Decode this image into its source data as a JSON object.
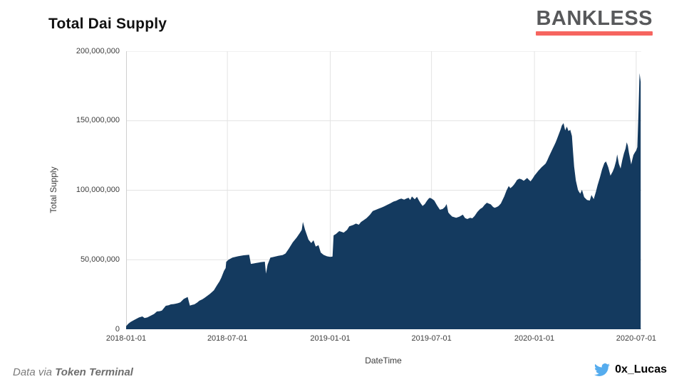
{
  "header": {
    "title": "Total Dai Supply",
    "logo_text": "BANKLESS"
  },
  "footer": {
    "credit_prefix": "Data via ",
    "credit_source": "Token Terminal",
    "twitter_handle": "0x_Lucas"
  },
  "icons": {
    "twitter": "twitter-bird-icon"
  },
  "colors": {
    "area_fill": "#143A5F",
    "logo_text": "#58595B",
    "logo_underline": "#F6655F",
    "twitter_blue": "#55ACEE",
    "gridline": "#E3E3E3",
    "axis_line": "#CFCFCF",
    "background": "#FFFFFF"
  },
  "chart_data": {
    "type": "area",
    "title": "Total Dai Supply",
    "xlabel": "DateTime",
    "ylabel": "Total Supply",
    "grid": true,
    "legend": "none",
    "ylim": [
      0,
      200000000
    ],
    "x_range_days": [
      0,
      921
    ],
    "x_epoch": "2018-01-01",
    "y_unit_of_points": "millions of DAI",
    "x_ticks": [
      {
        "label": "2018-01-01",
        "day": 0
      },
      {
        "label": "2018-07-01",
        "day": 181
      },
      {
        "label": "2019-01-01",
        "day": 365
      },
      {
        "label": "2019-07-01",
        "day": 546
      },
      {
        "label": "2020-01-01",
        "day": 730
      },
      {
        "label": "2020-07-01",
        "day": 912
      }
    ],
    "y_ticks": [
      {
        "label": "0",
        "value": 0
      },
      {
        "label": "50,000,000",
        "value": 50000000
      },
      {
        "label": "100,000,000",
        "value": 100000000
      },
      {
        "label": "150,000,000",
        "value": 150000000
      },
      {
        "label": "200,000,000",
        "value": 200000000
      }
    ],
    "series": [
      {
        "name": "Total Dai Supply",
        "points_day_millions": [
          [
            0,
            2.2
          ],
          [
            4,
            4.0
          ],
          [
            8,
            5.2
          ],
          [
            14,
            6.6
          ],
          [
            23,
            8.5
          ],
          [
            29,
            9.2
          ],
          [
            33,
            8.1
          ],
          [
            38,
            8.5
          ],
          [
            46,
            10.2
          ],
          [
            50,
            11.0
          ],
          [
            55,
            12.8
          ],
          [
            60,
            13.0
          ],
          [
            64,
            13.4
          ],
          [
            71,
            16.9
          ],
          [
            76,
            17.3
          ],
          [
            80,
            17.9
          ],
          [
            85,
            18.1
          ],
          [
            89,
            18.4
          ],
          [
            93,
            18.8
          ],
          [
            97,
            19.4
          ],
          [
            103,
            21.8
          ],
          [
            110,
            23.2
          ],
          [
            114,
            17.0
          ],
          [
            118,
            17.5
          ],
          [
            122,
            17.9
          ],
          [
            127,
            19.2
          ],
          [
            131,
            20.5
          ],
          [
            136,
            21.5
          ],
          [
            140,
            22.5
          ],
          [
            145,
            24.0
          ],
          [
            150,
            25.5
          ],
          [
            157,
            28.0
          ],
          [
            163,
            32.0
          ],
          [
            167,
            34.5
          ],
          [
            170,
            37.0
          ],
          [
            175,
            42.0
          ],
          [
            178,
            44.0
          ],
          [
            179,
            48.5
          ],
          [
            183,
            50.0
          ],
          [
            190,
            51.5
          ],
          [
            200,
            52.5
          ],
          [
            210,
            53.2
          ],
          [
            220,
            53.6
          ],
          [
            223,
            47.0
          ],
          [
            228,
            47.3
          ],
          [
            232,
            47.6
          ],
          [
            237,
            48.0
          ],
          [
            241,
            48.3
          ],
          [
            248,
            48.6
          ],
          [
            250,
            40.0
          ],
          [
            253,
            46.5
          ],
          [
            258,
            51.5
          ],
          [
            264,
            52.0
          ],
          [
            272,
            52.8
          ],
          [
            280,
            53.4
          ],
          [
            285,
            54.5
          ],
          [
            291,
            58.0
          ],
          [
            298,
            62.5
          ],
          [
            305,
            66.0
          ],
          [
            311,
            69.5
          ],
          [
            314,
            71.5
          ],
          [
            316,
            77.2
          ],
          [
            320,
            71.5
          ],
          [
            326,
            64.5
          ],
          [
            331,
            62.0
          ],
          [
            335,
            64.0
          ],
          [
            339,
            59.5
          ],
          [
            344,
            60.5
          ],
          [
            348,
            55.2
          ],
          [
            353,
            53.5
          ],
          [
            359,
            52.5
          ],
          [
            365,
            52.0
          ],
          [
            369,
            52.3
          ],
          [
            371,
            67.5
          ],
          [
            375,
            68.5
          ],
          [
            381,
            70.6
          ],
          [
            386,
            70.0
          ],
          [
            389,
            69.5
          ],
          [
            395,
            71.5
          ],
          [
            399,
            74.0
          ],
          [
            406,
            75.0
          ],
          [
            411,
            76.0
          ],
          [
            416,
            75.2
          ],
          [
            420,
            77.2
          ],
          [
            425,
            78.5
          ],
          [
            430,
            80.0
          ],
          [
            436,
            82.4
          ],
          [
            441,
            85.0
          ],
          [
            447,
            86.0
          ],
          [
            452,
            86.8
          ],
          [
            457,
            87.6
          ],
          [
            462,
            88.5
          ],
          [
            467,
            89.5
          ],
          [
            472,
            90.5
          ],
          [
            478,
            91.8
          ],
          [
            483,
            92.5
          ],
          [
            488,
            93.5
          ],
          [
            492,
            94.0
          ],
          [
            497,
            93.2
          ],
          [
            501,
            94.0
          ],
          [
            505,
            94.6
          ],
          [
            508,
            93.0
          ],
          [
            511,
            95.5
          ],
          [
            516,
            93.5
          ],
          [
            520,
            95.3
          ],
          [
            523,
            93.0
          ],
          [
            526,
            91.0
          ],
          [
            530,
            88.7
          ],
          [
            534,
            90.0
          ],
          [
            538,
            92.5
          ],
          [
            541,
            94.0
          ],
          [
            543,
            94.6
          ],
          [
            547,
            93.8
          ],
          [
            551,
            92.6
          ],
          [
            556,
            89.0
          ],
          [
            561,
            86.0
          ],
          [
            566,
            86.5
          ],
          [
            570,
            88.0
          ],
          [
            573,
            90.0
          ],
          [
            576,
            84.0
          ],
          [
            579,
            82.6
          ],
          [
            583,
            81.0
          ],
          [
            590,
            80.2
          ],
          [
            596,
            81.0
          ],
          [
            602,
            82.4
          ],
          [
            606,
            80.0
          ],
          [
            610,
            79.3
          ],
          [
            615,
            80.2
          ],
          [
            619,
            79.8
          ],
          [
            623,
            81.5
          ],
          [
            628,
            84.4
          ],
          [
            633,
            86.5
          ],
          [
            637,
            87.5
          ],
          [
            641,
            89.5
          ],
          [
            645,
            91.0
          ],
          [
            649,
            90.3
          ],
          [
            652,
            89.8
          ],
          [
            656,
            88.0
          ],
          [
            659,
            87.3
          ],
          [
            663,
            88.0
          ],
          [
            666,
            88.7
          ],
          [
            670,
            90.5
          ],
          [
            673,
            93.0
          ],
          [
            676,
            95.5
          ],
          [
            680,
            99.7
          ],
          [
            684,
            103.0
          ],
          [
            687,
            101.5
          ],
          [
            690,
            102.5
          ],
          [
            693,
            103.8
          ],
          [
            696,
            105.5
          ],
          [
            699,
            107.4
          ],
          [
            703,
            108.3
          ],
          [
            707,
            107.8
          ],
          [
            711,
            106.8
          ],
          [
            714,
            107.8
          ],
          [
            717,
            108.8
          ],
          [
            720,
            107.5
          ],
          [
            723,
            106.4
          ],
          [
            727,
            108.5
          ],
          [
            730,
            110.5
          ],
          [
            734,
            112.5
          ],
          [
            737,
            114.0
          ],
          [
            740,
            115.3
          ],
          [
            743,
            116.6
          ],
          [
            747,
            118.0
          ],
          [
            750,
            119.2
          ],
          [
            753,
            121.5
          ],
          [
            756,
            124.3
          ],
          [
            759,
            126.8
          ],
          [
            762,
            129.4
          ],
          [
            765,
            131.8
          ],
          [
            768,
            134.5
          ],
          [
            771,
            137.5
          ],
          [
            774,
            140.7
          ],
          [
            777,
            144.0
          ],
          [
            779,
            146.5
          ],
          [
            782,
            148.3
          ],
          [
            785,
            143.0
          ],
          [
            788,
            145.8
          ],
          [
            791,
            142.5
          ],
          [
            794,
            143.5
          ],
          [
            797,
            139.0
          ],
          [
            799,
            128.0
          ],
          [
            801,
            117.0
          ],
          [
            804,
            107.0
          ],
          [
            808,
            100.0
          ],
          [
            812,
            97.5
          ],
          [
            815,
            100.3
          ],
          [
            819,
            95.0
          ],
          [
            824,
            93.0
          ],
          [
            829,
            92.6
          ],
          [
            832,
            96.5
          ],
          [
            836,
            93.6
          ],
          [
            840,
            99.0
          ],
          [
            843,
            103.8
          ],
          [
            847,
            109.0
          ],
          [
            851,
            115.0
          ],
          [
            855,
            119.5
          ],
          [
            858,
            120.7
          ],
          [
            862,
            116.5
          ],
          [
            866,
            110.5
          ],
          [
            870,
            113.5
          ],
          [
            873,
            116.5
          ],
          [
            876,
            121.0
          ],
          [
            878,
            125.8
          ],
          [
            881,
            119.0
          ],
          [
            884,
            115.6
          ],
          [
            887,
            121.5
          ],
          [
            890,
            126.5
          ],
          [
            893,
            130.0
          ],
          [
            895,
            134.5
          ],
          [
            897,
            132.0
          ],
          [
            899,
            127.0
          ],
          [
            901,
            123.0
          ],
          [
            903,
            118.5
          ],
          [
            905,
            122.0
          ],
          [
            907,
            125.3
          ],
          [
            910,
            127.5
          ],
          [
            912,
            128.5
          ],
          [
            914,
            131.0
          ],
          [
            916,
            156.0
          ],
          [
            918,
            184.2
          ],
          [
            920,
            178.0
          ]
        ]
      }
    ]
  }
}
